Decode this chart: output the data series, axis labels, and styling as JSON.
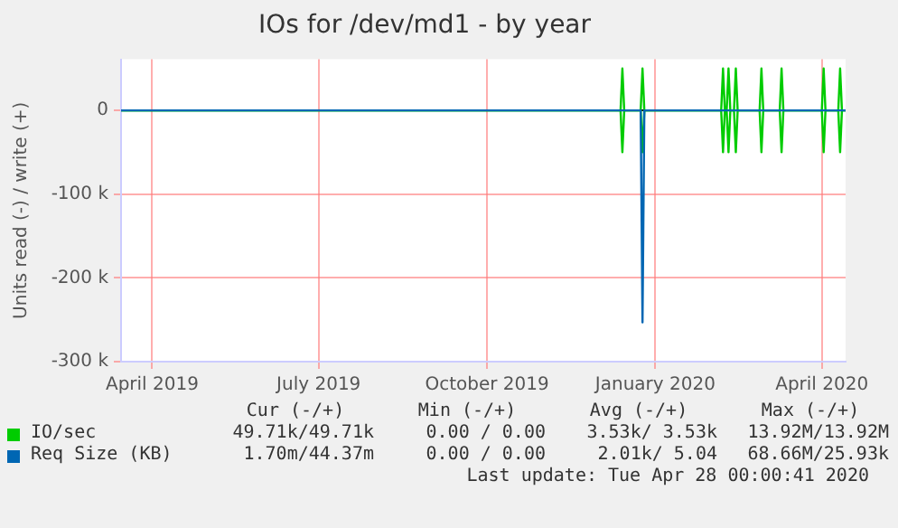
{
  "chart_data": {
    "type": "line",
    "title": "IOs for /dev/md1 - by year",
    "ylabel": "Units read (-) / write (+)",
    "x": [
      "2019-03-29",
      "2019-12-27",
      "2019-12-28",
      "2019-12-29",
      "2020-01-07",
      "2020-01-08",
      "2020-01-09",
      "2020-02-20",
      "2020-02-21",
      "2020-02-22",
      "2020-02-23",
      "2020-02-24",
      "2020-02-25",
      "2020-02-27",
      "2020-02-28",
      "2020-02-29",
      "2020-03-12",
      "2020-03-13",
      "2020-03-14",
      "2020-03-23",
      "2020-03-24",
      "2020-03-25",
      "2020-04-15",
      "2020-04-16",
      "2020-04-17",
      "2020-04-24",
      "2020-04-25",
      "2020-04-26",
      "2020-04-28"
    ],
    "series": [
      {
        "name": "IO/sec",
        "color": "#00cc00",
        "values": [
          0,
          0,
          50000,
          0,
          0,
          50000,
          0,
          0,
          50000,
          0,
          0,
          50000,
          0,
          0,
          50000,
          0,
          0,
          50000,
          0,
          0,
          50000,
          0,
          0,
          50000,
          0,
          0,
          50000,
          0,
          0
        ]
      },
      {
        "color": "#00cc00",
        "values": [
          0,
          0,
          -50000,
          0,
          0,
          -50000,
          0,
          0,
          -50000,
          0,
          0,
          -50000,
          0,
          0,
          -50000,
          0,
          0,
          -50000,
          0,
          0,
          -50000,
          0,
          0,
          -50000,
          0,
          0,
          -50000,
          0,
          0
        ]
      },
      {
        "name": "Req Size (KB)",
        "color": "#0066b3",
        "values": [
          0,
          0,
          0,
          0,
          0,
          -253000,
          0,
          0,
          0,
          0,
          0,
          0,
          0,
          0,
          0,
          0,
          0,
          0,
          0,
          0,
          0,
          0,
          0,
          0,
          0,
          0,
          0,
          0,
          0
        ]
      }
    ],
    "xlim": [
      "2019-03-29",
      "2020-04-28"
    ],
    "xticks": [
      {
        "value": "2019-04-15",
        "label": "April 2019"
      },
      {
        "value": "2019-07-15",
        "label": "July 2019"
      },
      {
        "value": "2019-10-15",
        "label": "October 2019"
      },
      {
        "value": "2020-01-15",
        "label": "January 2020"
      },
      {
        "value": "2020-04-15",
        "label": "April 2020"
      }
    ],
    "ylim": [
      -300000,
      61000
    ],
    "yticks": [
      {
        "value": 0,
        "label": "0"
      },
      {
        "value": -100000,
        "label": "-100 k"
      },
      {
        "value": -200000,
        "label": "-200 k"
      },
      {
        "value": -300000,
        "label": "-300 k"
      }
    ],
    "grid": true,
    "legend": "bottom",
    "marker": "none",
    "line_style": "solid",
    "annotations": [
      "Cur (-/+)",
      "Min (-/+)",
      "Avg (-/+)",
      "Max (-/+)",
      "49.71k/49.71k",
      "0.00 / 0.00",
      "3.53k/ 3.53k",
      "13.92M/13.92M",
      "1.70m/44.37m",
      "0.00 / 0.00",
      "2.01k/ 5.04",
      "68.66M/25.93k",
      "Last update: Tue Apr 28 00:00:41 2020"
    ]
  }
}
